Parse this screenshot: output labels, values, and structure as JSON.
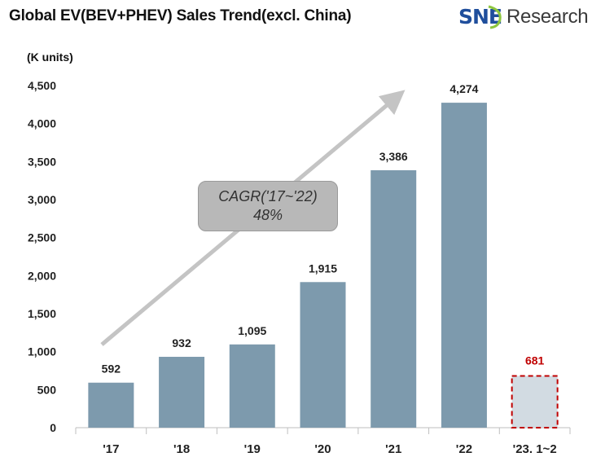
{
  "title": "Global EV(BEV+PHEV)  Sales Trend(excl. China)",
  "logo": {
    "brand": "SNE",
    "suffix": "Research",
    "brand_color": "#1f4e9c"
  },
  "unit_label": "(K units)",
  "annotation": {
    "line1": "CAGR('17~'22)",
    "line2": "48%"
  },
  "colors": {
    "bar": "#7d9aad",
    "highlight_bar": "#d2dbe2",
    "highlight_border": "#c00000",
    "highlight_label": "#c00000",
    "arrow": "#c4c4c4"
  },
  "chart_data": {
    "type": "bar",
    "title": "Global EV(BEV+PHEV)  Sales Trend(excl. China)",
    "ylabel": "(K units)",
    "xlabel": "",
    "categories": [
      "'17",
      "'18",
      "'19",
      "'20",
      "'21",
      "'22",
      "'23. 1~2"
    ],
    "values": [
      592,
      932,
      1095,
      1915,
      3386,
      4274,
      681
    ],
    "value_labels": [
      "592",
      "932",
      "1,095",
      "1,915",
      "3,386",
      "4,274",
      "681"
    ],
    "highlighted": [
      false,
      false,
      false,
      false,
      false,
      false,
      true
    ],
    "ylim": [
      0,
      4500
    ],
    "yticks": [
      0,
      500,
      1000,
      1500,
      2000,
      2500,
      3000,
      3500,
      4000,
      4500
    ],
    "ytick_labels": [
      "0",
      "500",
      "1,000",
      "1,500",
      "2,000",
      "2,500",
      "3,000",
      "3,500",
      "4,000",
      "4,500"
    ],
    "grid": false,
    "legend": "none"
  }
}
